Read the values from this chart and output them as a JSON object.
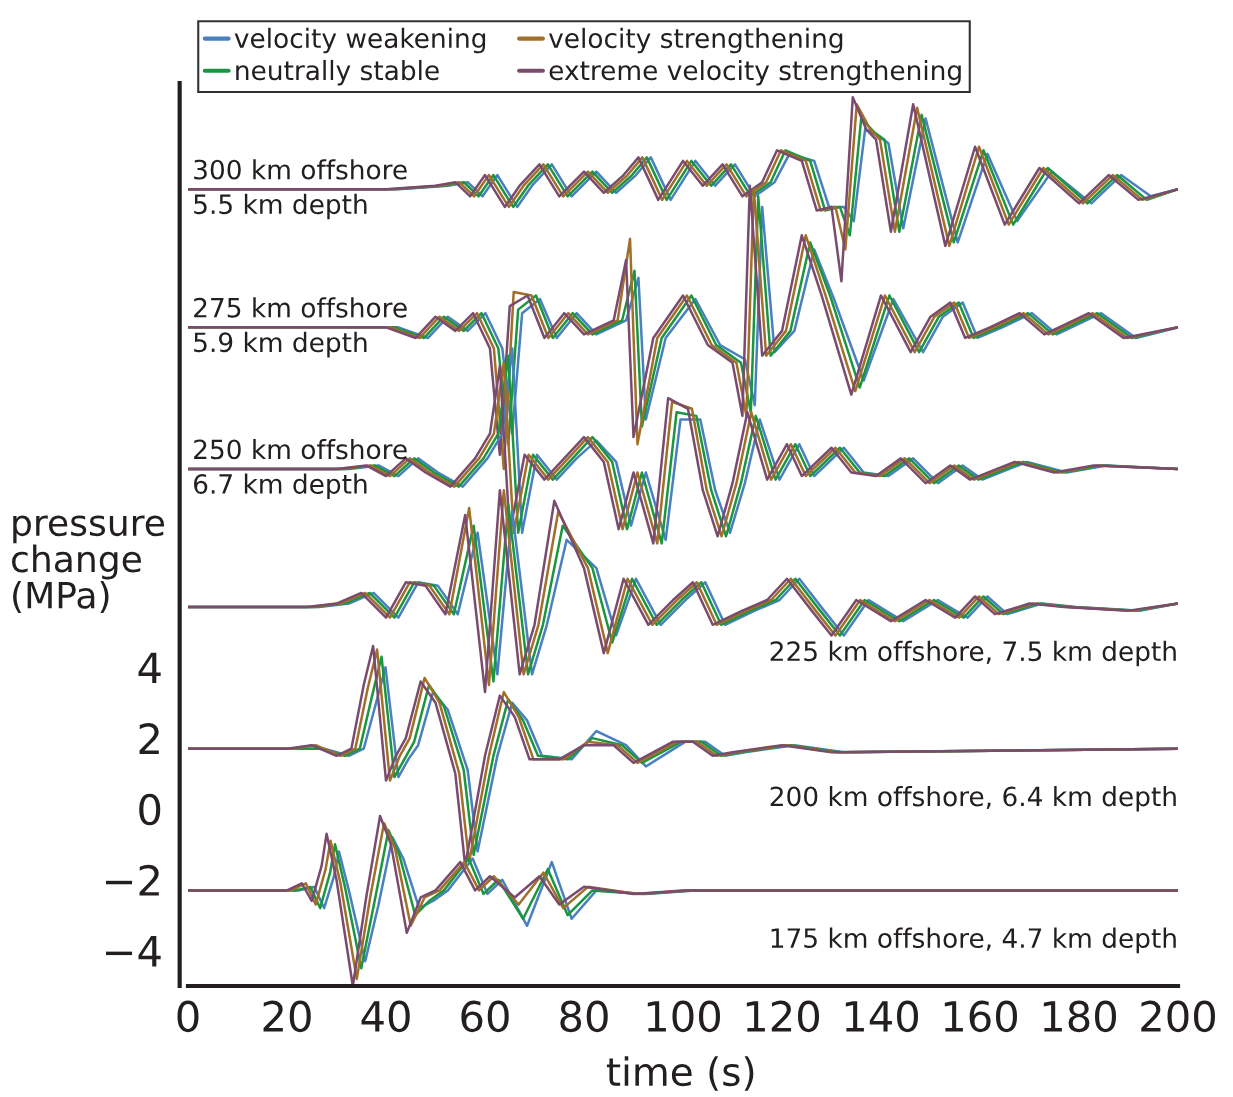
{
  "chart_data": {
    "type": "line",
    "xlabel": "time (s)",
    "ylabel": "pressure\nchange\n(MPa)",
    "xlim": [
      0,
      200
    ],
    "xticks": [
      0,
      20,
      40,
      60,
      80,
      100,
      120,
      140,
      160,
      180,
      200
    ],
    "ylim": [
      -5.0,
      20.5
    ],
    "yticks": [
      {
        "value": -4,
        "label": "−4"
      },
      {
        "value": -2,
        "label": "−2"
      },
      0,
      2,
      4
    ],
    "grid": false,
    "legend": "top",
    "marker": "none",
    "line_style": "solid",
    "annotations": [
      "300 km offshore\n5.5 km depth",
      "275 km offshore\n5.9 km depth",
      "250 km offshore\n6.7 km depth",
      "225 km offshore, 7.5 km depth",
      "200 km offshore, 6.4 km depth",
      "175 km offshore, 4.7 km depth"
    ],
    "series": [
      {
        "name": "velocity weakening",
        "color": "#4a7fc1",
        "x": [
          0,
          42.5,
          52.5,
          56.5,
          59.5,
          62.5,
          66.5,
          69.5,
          73.5,
          77.5,
          82.5,
          86.5,
          90.5,
          93.5,
          97.5,
          102.5,
          106.5,
          110.5,
          114.5,
          118.5,
          121.5,
          126.5,
          129.5,
          132.5,
          134.5,
          136.8,
          139.5,
          141.5,
          144.5,
          149,
          155.5,
          161.5,
          167.5,
          174.5,
          182.5,
          188.5,
          194.5,
          200
        ],
        "values": [
          17.5,
          17.5,
          17.6,
          17.7,
          17.3,
          17.9,
          17.0,
          17.6,
          18.2,
          17.3,
          18.0,
          17.4,
          17.9,
          18.4,
          17.2,
          18.3,
          17.6,
          18.2,
          17.3,
          17.7,
          18.5,
          18.3,
          17.0,
          17.0,
          16.6,
          19.2,
          19.0,
          18.8,
          16.4,
          19.5,
          16.0,
          18.5,
          16.6,
          18.0,
          17.1,
          17.9,
          17.3,
          17.5
        ]
      },
      {
        "name": "neutrally stable",
        "color": "#1a9641",
        "x": [
          0,
          41.7,
          51.7,
          55.7,
          58.7,
          61.7,
          65.7,
          68.7,
          72.7,
          76.7,
          81.7,
          85.7,
          89.7,
          92.7,
          96.7,
          101.7,
          105.7,
          109.7,
          113.7,
          117.7,
          120.7,
          125.7,
          128.7,
          131.7,
          133.7,
          136,
          138.7,
          140.7,
          143.7,
          148.2,
          154.7,
          160.7,
          166.7,
          173.7,
          181.7,
          187.7,
          193.7,
          200
        ],
        "values": [
          17.5,
          17.5,
          17.6,
          17.7,
          17.3,
          17.9,
          17.0,
          17.6,
          18.2,
          17.3,
          18.0,
          17.4,
          17.9,
          18.4,
          17.2,
          18.3,
          17.6,
          18.2,
          17.3,
          17.7,
          18.6,
          18.3,
          16.9,
          17.0,
          16.2,
          19.5,
          19.1,
          18.9,
          16.3,
          19.6,
          16.0,
          18.6,
          16.5,
          18.1,
          17.1,
          17.9,
          17.2,
          17.5
        ]
      },
      {
        "name": "velocity strengthening",
        "color": "#a0702a",
        "x": [
          0,
          40.8,
          50.8,
          54.8,
          57.8,
          60.8,
          64.8,
          67.8,
          71.8,
          75.8,
          80.8,
          84.8,
          88.8,
          91.8,
          95.8,
          100.8,
          104.8,
          108.8,
          112.8,
          116.8,
          119.8,
          124.8,
          127.8,
          130.8,
          132.8,
          135.1,
          137.8,
          139.8,
          142.8,
          147.3,
          153.8,
          159.8,
          165.8,
          172.8,
          180.8,
          186.8,
          192.8,
          200
        ],
        "values": [
          17.5,
          17.5,
          17.6,
          17.7,
          17.3,
          17.9,
          17.0,
          17.6,
          18.2,
          17.3,
          18.0,
          17.4,
          17.9,
          18.4,
          17.2,
          18.3,
          17.6,
          18.2,
          17.3,
          17.7,
          18.6,
          18.3,
          16.9,
          17.0,
          15.8,
          19.9,
          19.2,
          18.9,
          16.3,
          19.8,
          15.9,
          18.7,
          16.5,
          18.1,
          17.1,
          17.9,
          17.2,
          17.5
        ]
      },
      {
        "name": "extreme velocity strengthening",
        "color": "#7b4b6e",
        "x": [
          0,
          40,
          50,
          54,
          57,
          60,
          64,
          67,
          71,
          75,
          80,
          84,
          88,
          91,
          95,
          100,
          104,
          108,
          112,
          116,
          119,
          124,
          127,
          130,
          132,
          134.3,
          137,
          139,
          142,
          146.5,
          153,
          159,
          165,
          172,
          180,
          186,
          192,
          200
        ],
        "values": [
          17.5,
          17.5,
          17.6,
          17.7,
          17.3,
          17.9,
          17.0,
          17.6,
          18.2,
          17.3,
          18.0,
          17.4,
          17.9,
          18.4,
          17.2,
          18.3,
          17.6,
          18.2,
          17.3,
          17.7,
          18.6,
          18.3,
          16.9,
          17.0,
          14.9,
          20.1,
          19.2,
          18.9,
          16.3,
          19.9,
          15.9,
          18.7,
          16.5,
          18.1,
          17.1,
          17.9,
          17.2,
          17.5
        ]
      },
      {
        "color": "#4a7fc1",
        "x": [
          0,
          32.5,
          42.5,
          48.5,
          52.5,
          56.5,
          60.1,
          63.5,
          65.5,
          67.5,
          71.1,
          74.5,
          78.5,
          82.5,
          88.5,
          91,
          92.5,
          96.5,
          102.5,
          107.5,
          112.5,
          114.5,
          116,
          118.5,
          122.5,
          126.5,
          130.5,
          136.5,
          142.5,
          148.5,
          152.5,
          156.5,
          159.5,
          164.5,
          170.5,
          175.5,
          184.5,
          191.5,
          200
        ],
        "values": [
          13.6,
          13.6,
          13.6,
          13.3,
          13.9,
          13.5,
          14.0,
          13.0,
          10.6,
          14.0,
          14.4,
          13.3,
          14.0,
          13.4,
          13.8,
          15.0,
          11.0,
          13.3,
          14.4,
          13.1,
          12.7,
          11.4,
          17.0,
          12.9,
          13.5,
          15.8,
          14.4,
          12.1,
          14.4,
          12.9,
          13.9,
          14.3,
          13.3,
          13.6,
          14.0,
          13.4,
          14.0,
          13.3,
          13.6
        ]
      },
      {
        "color": "#1a9641",
        "x": [
          0,
          31.7,
          41.7,
          47.7,
          51.7,
          55.7,
          59.3,
          62.7,
          64.7,
          66.7,
          70.3,
          73.7,
          77.7,
          81.7,
          87.7,
          90.2,
          91.7,
          95.7,
          101.7,
          106.7,
          111.7,
          113.7,
          115.2,
          117.7,
          121.7,
          125.7,
          129.7,
          135.7,
          141.7,
          147.7,
          151.7,
          155.7,
          158.7,
          163.7,
          169.7,
          174.7,
          183.7,
          190.7,
          200
        ],
        "values": [
          13.6,
          13.6,
          13.6,
          13.3,
          13.9,
          13.5,
          14.0,
          13.0,
          10.3,
          14.1,
          14.5,
          13.3,
          14.0,
          13.4,
          13.8,
          15.2,
          10.8,
          13.3,
          14.5,
          13.1,
          12.6,
          11.2,
          17.3,
          12.8,
          13.5,
          16.0,
          14.5,
          11.9,
          14.5,
          12.9,
          13.9,
          14.3,
          13.3,
          13.6,
          14.0,
          13.4,
          14.0,
          13.3,
          13.6
        ]
      },
      {
        "color": "#a0702a",
        "x": [
          0,
          30.8,
          40.8,
          46.8,
          50.8,
          54.8,
          58.4,
          61.8,
          63.8,
          65.8,
          69.4,
          72.8,
          76.8,
          80.8,
          86.8,
          89.3,
          90.8,
          94.8,
          100.8,
          105.8,
          110.8,
          112.8,
          114.3,
          116.8,
          120.8,
          124.8,
          128.8,
          134.8,
          140.8,
          146.8,
          150.8,
          154.8,
          157.8,
          162.8,
          168.8,
          173.8,
          182.8,
          189.8,
          200
        ],
        "values": [
          13.6,
          13.6,
          13.6,
          13.3,
          13.9,
          13.5,
          14.0,
          13.0,
          9.6,
          14.6,
          14.5,
          13.3,
          14.0,
          13.4,
          13.8,
          16.1,
          10.3,
          13.3,
          14.5,
          13.1,
          12.6,
          11.1,
          17.5,
          12.8,
          13.5,
          16.2,
          14.5,
          11.8,
          14.5,
          12.9,
          13.9,
          14.3,
          13.3,
          13.6,
          14.0,
          13.4,
          14.0,
          13.3,
          13.6
        ]
      },
      {
        "color": "#7b4b6e",
        "x": [
          0,
          30,
          40,
          46,
          50,
          54,
          57.6,
          61,
          63,
          65,
          68.6,
          72,
          76,
          80,
          86,
          88.5,
          90,
          94,
          100,
          105,
          110,
          112,
          113.5,
          116,
          120,
          124,
          128,
          134,
          140,
          146,
          150,
          154,
          157,
          162,
          168,
          173,
          182,
          189,
          200
        ],
        "values": [
          13.6,
          13.6,
          13.6,
          13.3,
          13.9,
          13.5,
          14.0,
          13.0,
          10.0,
          14.2,
          14.5,
          13.3,
          14.0,
          13.4,
          13.8,
          15.5,
          10.5,
          13.3,
          14.5,
          13.1,
          12.6,
          11.1,
          17.6,
          12.8,
          13.5,
          16.2,
          14.5,
          11.7,
          14.5,
          12.9,
          13.9,
          14.3,
          13.3,
          13.6,
          14.0,
          13.4,
          14.0,
          13.3,
          13.6
        ]
      },
      {
        "color": "#4a7fc1",
        "x": [
          0,
          32.5,
          38.5,
          42.5,
          46.5,
          50.5,
          55.5,
          60.5,
          63.5,
          65.5,
          67.5,
          70.5,
          74.5,
          78.5,
          82.5,
          86.5,
          89.5,
          92.5,
          96.5,
          99.5,
          103.5,
          106.5,
          109.5,
          112.5,
          115.5,
          119.5,
          123.5,
          126.5,
          132.5,
          136.5,
          141.5,
          146.5,
          151.5,
          156.5,
          160.5,
          169.5,
          177.5,
          185.5,
          200
        ],
        "values": [
          9.6,
          9.6,
          9.7,
          9.4,
          9.9,
          9.5,
          9.1,
          9.9,
          10.6,
          13.0,
          7.8,
          10.0,
          9.3,
          9.9,
          10.4,
          9.8,
          8.0,
          9.5,
          7.6,
          11.0,
          11.0,
          9.0,
          7.8,
          9.2,
          11.0,
          9.3,
          10.3,
          9.4,
          10.2,
          9.5,
          9.4,
          9.9,
          9.2,
          9.7,
          9.3,
          9.8,
          9.5,
          9.7,
          9.6
        ]
      },
      {
        "color": "#1a9641",
        "x": [
          0,
          31.7,
          37.7,
          41.7,
          45.7,
          49.7,
          54.7,
          59.7,
          62.7,
          64.7,
          66.7,
          69.7,
          73.7,
          77.7,
          81.7,
          85.7,
          88.7,
          91.7,
          95.7,
          98.7,
          102.7,
          105.7,
          108.7,
          111.7,
          114.7,
          118.7,
          122.7,
          125.7,
          131.7,
          135.7,
          140.7,
          145.7,
          150.7,
          155.7,
          159.7,
          168.7,
          176.7,
          184.7,
          200
        ],
        "values": [
          9.6,
          9.6,
          9.7,
          9.4,
          9.9,
          9.5,
          9.1,
          9.9,
          10.6,
          12.8,
          7.8,
          10.0,
          9.3,
          9.9,
          10.5,
          9.8,
          7.9,
          9.5,
          7.5,
          11.2,
          11.1,
          9.0,
          7.7,
          9.2,
          11.1,
          9.3,
          10.3,
          9.4,
          10.2,
          9.5,
          9.4,
          9.9,
          9.2,
          9.7,
          9.3,
          9.8,
          9.5,
          9.7,
          9.6
        ]
      },
      {
        "color": "#a0702a",
        "x": [
          0,
          30.8,
          36.8,
          40.8,
          44.8,
          48.8,
          53.8,
          58.8,
          61.8,
          63.8,
          65.8,
          68.8,
          72.8,
          76.8,
          80.8,
          84.8,
          87.8,
          90.8,
          94.8,
          97.8,
          101.8,
          104.8,
          107.8,
          110.8,
          113.8,
          117.8,
          121.8,
          124.8,
          130.8,
          134.8,
          139.8,
          144.8,
          149.8,
          154.8,
          158.8,
          167.8,
          175.8,
          183.8,
          200
        ],
        "values": [
          9.6,
          9.6,
          9.7,
          9.4,
          9.9,
          9.5,
          9.1,
          9.9,
          10.6,
          12.6,
          7.8,
          10.0,
          9.3,
          9.9,
          10.5,
          9.8,
          7.9,
          9.5,
          7.5,
          11.5,
          11.3,
          9.0,
          7.7,
          9.2,
          11.2,
          9.3,
          10.3,
          9.4,
          10.2,
          9.5,
          9.4,
          9.9,
          9.2,
          9.7,
          9.3,
          9.8,
          9.5,
          9.7,
          9.6
        ]
      },
      {
        "color": "#7b4b6e",
        "x": [
          0,
          30,
          36,
          40,
          44,
          48,
          53,
          58,
          61,
          63,
          65,
          68,
          72,
          76,
          80,
          84,
          87,
          90,
          94,
          97,
          101,
          104,
          107,
          110,
          113,
          117,
          121,
          124,
          130,
          134,
          139,
          144,
          149,
          154,
          158,
          167,
          175,
          183,
          200
        ],
        "values": [
          9.6,
          9.6,
          9.7,
          9.4,
          9.9,
          9.5,
          9.1,
          9.9,
          10.6,
          12.5,
          7.8,
          10.0,
          9.3,
          9.9,
          10.5,
          9.8,
          7.9,
          9.5,
          7.5,
          11.6,
          11.3,
          9.0,
          7.7,
          9.2,
          11.2,
          9.3,
          10.3,
          9.4,
          10.2,
          9.5,
          9.4,
          9.9,
          9.2,
          9.7,
          9.3,
          9.8,
          9.5,
          9.7,
          9.6
        ]
      },
      {
        "color": "#4a7fc1",
        "x": [
          0,
          26.5,
          32.5,
          37.5,
          42.5,
          46.5,
          50.5,
          54.5,
          58.5,
          62.5,
          65.5,
          69.5,
          72.5,
          76.5,
          82.5,
          86.5,
          90.5,
          95.5,
          100.5,
          104.5,
          108.5,
          114.5,
          119.5,
          123.5,
          128.5,
          132.5,
          137.5,
          144.5,
          151.5,
          157.5,
          161.5,
          165.5,
          172.5,
          179.5,
          192.5,
          200
        ],
        "values": [
          5.7,
          5.7,
          5.8,
          6.1,
          5.4,
          6.4,
          6.3,
          5.5,
          7.8,
          3.8,
          8.4,
          3.8,
          5.2,
          7.6,
          6.8,
          4.9,
          6.5,
          5.2,
          5.9,
          6.4,
          5.2,
          5.6,
          5.9,
          6.5,
          5.6,
          4.9,
          5.9,
          5.3,
          5.9,
          5.4,
          6.0,
          5.5,
          5.8,
          5.7,
          5.6,
          5.8
        ]
      },
      {
        "color": "#1a9641",
        "x": [
          0,
          25.7,
          31.7,
          36.7,
          41.7,
          45.7,
          49.7,
          53.7,
          57.7,
          61.7,
          64.7,
          68.7,
          71.7,
          75.7,
          81.7,
          85.7,
          89.7,
          94.7,
          99.7,
          103.7,
          107.7,
          113.7,
          118.7,
          122.7,
          127.7,
          131.7,
          136.7,
          143.7,
          150.7,
          156.7,
          160.7,
          164.7,
          171.7,
          178.7,
          191.7,
          200
        ],
        "values": [
          5.7,
          5.7,
          5.8,
          6.1,
          5.4,
          6.4,
          6.3,
          5.5,
          8.0,
          3.6,
          8.6,
          3.8,
          5.2,
          8.0,
          6.8,
          4.7,
          6.5,
          5.2,
          5.9,
          6.4,
          5.2,
          5.6,
          5.9,
          6.5,
          5.6,
          4.9,
          5.9,
          5.3,
          5.9,
          5.4,
          6.0,
          5.5,
          5.8,
          5.7,
          5.6,
          5.8
        ]
      },
      {
        "color": "#a0702a",
        "x": [
          0,
          24.8,
          30.8,
          35.8,
          40.8,
          44.8,
          48.8,
          52.8,
          56.8,
          60.8,
          63.8,
          67.8,
          70.8,
          74.8,
          80.8,
          84.8,
          88.8,
          93.8,
          98.8,
          102.8,
          106.8,
          112.8,
          117.8,
          121.8,
          126.8,
          130.8,
          135.8,
          142.8,
          149.8,
          155.8,
          159.8,
          163.8,
          170.8,
          177.8,
          190.8,
          200
        ],
        "values": [
          5.7,
          5.7,
          5.8,
          6.1,
          5.4,
          6.4,
          6.3,
          5.5,
          8.5,
          3.5,
          9.0,
          3.8,
          5.2,
          8.4,
          6.8,
          4.4,
          6.5,
          5.2,
          5.9,
          6.4,
          5.2,
          5.6,
          5.9,
          6.5,
          5.6,
          4.9,
          5.9,
          5.3,
          5.9,
          5.4,
          6.0,
          5.5,
          5.8,
          5.7,
          5.6,
          5.8
        ]
      },
      {
        "color": "#7b4b6e",
        "x": [
          0,
          24,
          30,
          35,
          40,
          44,
          48,
          52,
          56,
          60,
          63,
          67,
          70,
          74,
          80,
          84,
          88,
          93,
          98,
          102,
          106,
          112,
          117,
          121,
          126,
          130,
          135,
          142,
          149,
          155,
          159,
          163,
          170,
          177,
          190,
          200
        ],
        "values": [
          5.7,
          5.7,
          5.8,
          6.1,
          5.4,
          6.4,
          6.3,
          5.5,
          8.3,
          3.3,
          9.0,
          3.8,
          5.2,
          8.7,
          6.8,
          4.4,
          6.5,
          5.2,
          5.9,
          6.4,
          5.2,
          5.6,
          5.9,
          6.5,
          5.6,
          4.9,
          5.9,
          5.3,
          5.9,
          5.4,
          6.0,
          5.5,
          5.8,
          5.7,
          5.6,
          5.8
        ]
      },
      {
        "color": "#4a7fc1",
        "x": [
          0,
          22.5,
          27.5,
          32.5,
          35.5,
          38,
          39.9,
          42.5,
          44.5,
          46.5,
          49.5,
          52.5,
          56.5,
          58.5,
          62.5,
          65.5,
          68.5,
          71.5,
          77.5,
          82.5,
          88.5,
          92.5,
          100.5,
          104.5,
          108.5,
          112.5,
          122.5,
          132.5,
          200
        ],
        "values": [
          1.7,
          1.7,
          1.7,
          1.5,
          1.7,
          3.0,
          4.0,
          0.9,
          1.4,
          1.8,
          3.3,
          2.8,
          1.1,
          -1.2,
          1.5,
          3.0,
          2.5,
          1.5,
          1.4,
          2.2,
          1.8,
          1.2,
          1.9,
          1.9,
          1.5,
          1.6,
          1.8,
          1.6,
          1.7
        ]
      },
      {
        "color": "#1a9641",
        "x": [
          0,
          21.7,
          26.7,
          31.7,
          34.7,
          37.2,
          39.1,
          41.7,
          43.7,
          45.7,
          48.7,
          51.7,
          55.7,
          57.7,
          61.7,
          64.7,
          67.7,
          70.7,
          76.7,
          81.7,
          87.7,
          91.7,
          99.7,
          103.7,
          107.7,
          111.7,
          121.7,
          131.7,
          200
        ],
        "values": [
          1.7,
          1.7,
          1.7,
          1.5,
          1.7,
          3.2,
          4.3,
          0.9,
          1.4,
          1.9,
          3.5,
          2.9,
          1.1,
          -1.3,
          1.5,
          3.1,
          2.5,
          1.5,
          1.4,
          2.0,
          1.8,
          1.3,
          1.9,
          1.9,
          1.5,
          1.6,
          1.8,
          1.6,
          1.7
        ]
      },
      {
        "color": "#a0702a",
        "x": [
          0,
          20.8,
          25.8,
          30.8,
          33.8,
          36.3,
          38.2,
          40.8,
          42.8,
          44.8,
          47.8,
          50.8,
          54.8,
          56.8,
          60.8,
          63.8,
          66.8,
          69.8,
          75.8,
          80.8,
          86.8,
          90.8,
          98.8,
          102.8,
          106.8,
          110.8,
          120.8,
          130.8,
          200
        ],
        "values": [
          1.7,
          1.7,
          1.8,
          1.5,
          1.7,
          3.4,
          4.5,
          0.8,
          1.5,
          2.0,
          3.7,
          3.0,
          1.0,
          -1.5,
          1.5,
          3.3,
          2.6,
          1.4,
          1.4,
          1.9,
          1.8,
          1.3,
          1.9,
          1.9,
          1.5,
          1.6,
          1.8,
          1.6,
          1.7
        ]
      },
      {
        "color": "#7b4b6e",
        "x": [
          0,
          20,
          25,
          30,
          33,
          35.5,
          37.4,
          40,
          42,
          44,
          47,
          50,
          54,
          56,
          60,
          63,
          66,
          69,
          75,
          80,
          86,
          90,
          98,
          102,
          106,
          110,
          120,
          130,
          200
        ],
        "values": [
          1.7,
          1.7,
          1.8,
          1.5,
          1.7,
          3.5,
          4.6,
          0.8,
          1.5,
          2.0,
          3.6,
          3.0,
          1.0,
          -1.6,
          1.5,
          3.2,
          2.6,
          1.4,
          1.4,
          1.8,
          1.8,
          1.3,
          1.9,
          1.9,
          1.5,
          1.6,
          1.8,
          1.6,
          1.7
        ]
      },
      {
        "color": "#4a7fc1",
        "x": [
          0,
          22.5,
          25.5,
          27.5,
          29.5,
          30.5,
          32.5,
          35.8,
          38.5,
          41.3,
          43.5,
          46.7,
          49.5,
          52.5,
          57.5,
          60.5,
          63.5,
          68.5,
          73.5,
          77.5,
          82.5,
          92.5,
          102.5,
          122.5,
          200
        ],
        "values": [
          -2.3,
          -2.3,
          -2.2,
          -2.8,
          -1.9,
          -1.2,
          -2.3,
          -4.3,
          -2.7,
          -0.8,
          -1.4,
          -2.8,
          -2.6,
          -2.3,
          -1.4,
          -2.4,
          -2.0,
          -3.3,
          -1.5,
          -3.1,
          -2.3,
          -2.4,
          -2.3,
          -2.3,
          -2.3
        ]
      },
      {
        "color": "#1a9641",
        "x": [
          0,
          21.7,
          24.7,
          26.7,
          28.7,
          29.7,
          31.7,
          35,
          37.7,
          40.5,
          42.7,
          45.9,
          48.7,
          51.7,
          56.7,
          59.7,
          62.7,
          67.7,
          72.7,
          76.7,
          81.7,
          91.7,
          101.7,
          121.7,
          200
        ],
        "values": [
          -2.3,
          -2.3,
          -2.2,
          -2.8,
          -1.8,
          -1.0,
          -2.2,
          -4.5,
          -2.6,
          -0.6,
          -1.3,
          -3.0,
          -2.6,
          -2.3,
          -1.4,
          -2.4,
          -2.0,
          -3.1,
          -1.7,
          -3.0,
          -2.3,
          -2.4,
          -2.3,
          -2.3,
          -2.3
        ]
      },
      {
        "color": "#a0702a",
        "x": [
          0,
          20.8,
          23.8,
          25.8,
          27.8,
          28.8,
          30.8,
          34.1,
          36.8,
          39.6,
          41.8,
          45,
          47.8,
          50.8,
          55.8,
          58.8,
          61.8,
          66.8,
          71.8,
          75.8,
          80.8,
          90.8,
          100.8,
          120.8,
          200
        ],
        "values": [
          -2.3,
          -2.3,
          -2.1,
          -2.7,
          -1.7,
          -0.9,
          -2.1,
          -4.8,
          -2.5,
          -0.4,
          -1.1,
          -3.3,
          -2.5,
          -2.3,
          -1.5,
          -2.3,
          -1.9,
          -2.7,
          -1.8,
          -2.8,
          -2.2,
          -2.4,
          -2.3,
          -2.3,
          -2.3
        ]
      },
      {
        "color": "#7b4b6e",
        "x": [
          0,
          20,
          23,
          25,
          27,
          28,
          30,
          33.3,
          36,
          38.8,
          41,
          44.2,
          47,
          50,
          55,
          58,
          61,
          66,
          71,
          75,
          80,
          90,
          100,
          120,
          200
        ],
        "values": [
          -2.3,
          -2.3,
          -2.1,
          -2.6,
          -1.6,
          -0.7,
          -2.0,
          -5.0,
          -2.5,
          -0.2,
          -1.0,
          -3.5,
          -2.5,
          -2.3,
          -1.5,
          -2.3,
          -1.9,
          -2.5,
          -1.9,
          -2.7,
          -2.2,
          -2.4,
          -2.3,
          -2.3,
          -2.3
        ]
      }
    ]
  }
}
